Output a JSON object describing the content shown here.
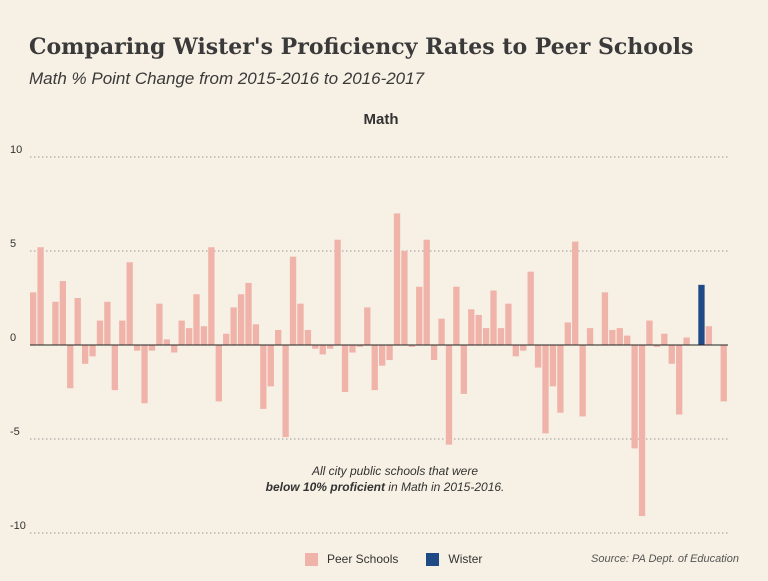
{
  "header": {
    "title": "Comparing Wister's Proficiency Rates to Peer Schools",
    "subtitle": "Math % Point Change from 2015-2016 to 2016-2017"
  },
  "annotation": {
    "line1": "All city public schools that were",
    "line2_bold": "below 10% proficient",
    "line2_rest": " in Math in 2015-2016."
  },
  "legend": {
    "peer_label": "Peer Schools",
    "wister_label": "Wister"
  },
  "source": "Source: PA Dept. of Education",
  "colors": {
    "peer": "#f0b3aa",
    "wister": "#1f4a85",
    "grid": "#9a9a9a"
  },
  "chart_data": {
    "type": "bar",
    "title": "Math",
    "xlabel": "",
    "ylabel": "",
    "ylim": [
      -10,
      10
    ],
    "yticks": [
      10,
      5,
      0,
      -5,
      -10
    ],
    "grid": true,
    "legend_position": "bottom",
    "highlight_index": 90,
    "series": [
      {
        "name": "Peer Schools",
        "values": [
          2.8,
          5.2,
          0,
          2.3,
          3.4,
          -2.3,
          2.5,
          -1.0,
          -0.6,
          1.3,
          2.3,
          -2.4,
          1.3,
          4.4,
          -0.3,
          -3.1,
          -0.3,
          2.2,
          0.3,
          -0.4,
          1.3,
          0.9,
          2.7,
          1.0,
          5.2,
          -3.0,
          0.6,
          2.0,
          2.7,
          3.3,
          1.1,
          -3.4,
          -2.2,
          0.8,
          -4.9,
          4.7,
          2.2,
          0.8,
          -0.2,
          -0.5,
          -0.2,
          5.6,
          -2.5,
          -0.4,
          -0.1,
          2.0,
          -2.4,
          -1.1,
          -0.8,
          7.0,
          5.0,
          -0.1,
          3.1,
          5.6,
          -0.8,
          1.4,
          -5.3,
          3.1,
          -2.6,
          1.9,
          1.6,
          0.9,
          2.9,
          0.9,
          2.2,
          -0.6,
          -0.3,
          3.9,
          -1.2,
          -4.7,
          -2.2,
          -3.6,
          1.2,
          5.5,
          -3.8,
          0.9,
          0,
          2.8,
          0.8,
          0.9,
          0.5,
          -5.5,
          -9.1,
          1.3,
          -0.1,
          0.6,
          -1.0,
          -3.7,
          0.4,
          0,
          0,
          1.0,
          0,
          -3.0
        ]
      },
      {
        "name": "Wister",
        "index": 90,
        "value": 3.2
      }
    ]
  }
}
